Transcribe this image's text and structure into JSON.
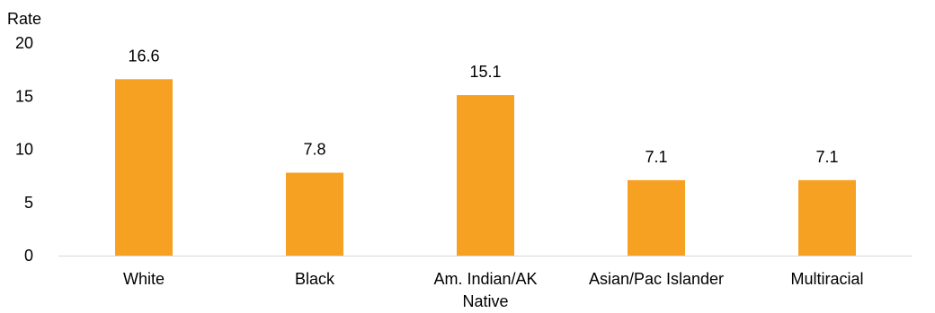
{
  "chart_data": {
    "type": "bar",
    "title": "",
    "xlabel": "",
    "ylabel": "Rate",
    "categories": [
      [
        "White"
      ],
      [
        "Black"
      ],
      [
        "Am. Indian/AK",
        "Native"
      ],
      [
        "Asian/Pac Islander"
      ],
      [
        "Multiracial"
      ]
    ],
    "values": [
      16.6,
      7.8,
      15.1,
      7.1,
      7.1
    ],
    "data_labels": [
      "16.6",
      "7.8",
      "15.1",
      "7.1",
      "7.1"
    ],
    "ylim": [
      0,
      20
    ],
    "yticks": [
      0,
      5,
      10,
      15,
      20
    ],
    "ytick_labels": [
      "0",
      "5",
      "10",
      "15",
      "20"
    ],
    "grid": false,
    "legend": "none",
    "colors": {
      "bar": "#F7A123",
      "axis": "#D9D9D9",
      "text": "#000000"
    }
  }
}
